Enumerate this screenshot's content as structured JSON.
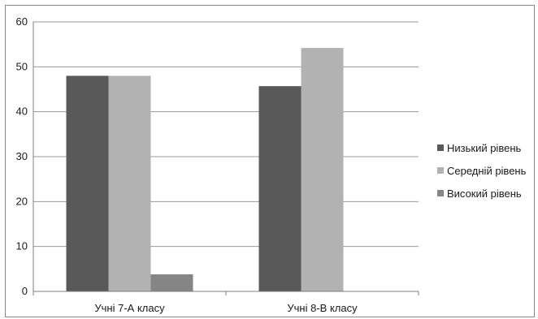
{
  "chart_data": {
    "type": "bar",
    "title": "",
    "xlabel": "",
    "ylabel": "",
    "categories": [
      "Учні 7-А класу",
      "Учні 8-В класу"
    ],
    "series": [
      {
        "name": "Низький рівень",
        "color": "#595959",
        "values": [
          48,
          45.7
        ]
      },
      {
        "name": "Середній рівень",
        "color": "#b2b2b2",
        "values": [
          48,
          54.2
        ]
      },
      {
        "name": "Високий рівень",
        "color": "#858585",
        "values": [
          3.8,
          null
        ]
      }
    ],
    "ylim": [
      0,
      60
    ],
    "yticks": [
      "0",
      "10",
      "20",
      "30",
      "40",
      "50",
      "60"
    ],
    "grid": true,
    "legend_position": "right"
  }
}
